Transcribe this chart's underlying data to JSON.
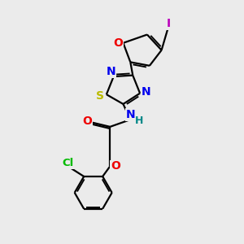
{
  "bg_color": "#ebebeb",
  "atom_colors": {
    "C": "#000000",
    "N": "#0000ee",
    "O": "#ee0000",
    "S": "#bbbb00",
    "Cl": "#00bb00",
    "I": "#bb00bb",
    "H": "#008888"
  },
  "bond_color": "#000000",
  "bond_width": 1.6,
  "font_size": 10
}
